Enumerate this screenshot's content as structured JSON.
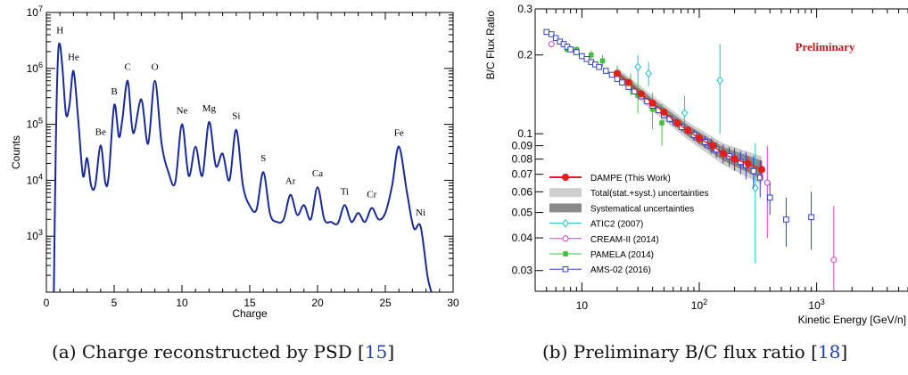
{
  "figures": [
    {
      "caption_prefix": "(a) Charge reconstructed by PSD [",
      "caption_ref": "15",
      "caption_suffix": "]"
    },
    {
      "caption_prefix": "(b) Preliminary B/C flux ratio [",
      "caption_ref": "18",
      "caption_suffix": "]"
    }
  ],
  "chart_data": [
    {
      "type": "line",
      "xlabel": "Charge",
      "ylabel": "Counts",
      "xlim": [
        0,
        30
      ],
      "ylim": [
        100,
        10000000
      ],
      "y_scale": "log",
      "x_ticks": [
        "0",
        "5",
        "10",
        "15",
        "20",
        "25",
        "30"
      ],
      "y_ticks": [
        "10^3",
        "10^4",
        "10^5",
        "10^6",
        "10^7"
      ],
      "series_color": "#1a2a9a",
      "peaks": [
        {
          "label": "H",
          "x": 1,
          "y": 2700000
        },
        {
          "label": "He",
          "x": 2,
          "y": 900000
        },
        {
          "label": "Be",
          "x": 4,
          "y": 42000
        },
        {
          "label": "B",
          "x": 5,
          "y": 220000
        },
        {
          "label": "C",
          "x": 6,
          "y": 600000
        },
        {
          "label": "O",
          "x": 8,
          "y": 600000
        },
        {
          "label": "Ne",
          "x": 10,
          "y": 100000
        },
        {
          "label": "Mg",
          "x": 12,
          "y": 110000
        },
        {
          "label": "Si",
          "x": 14,
          "y": 80000
        },
        {
          "label": "S",
          "x": 16,
          "y": 14000
        },
        {
          "label": "Ar",
          "x": 18,
          "y": 5500
        },
        {
          "label": "Ca",
          "x": 20,
          "y": 7500
        },
        {
          "label": "Ti",
          "x": 22,
          "y": 3600
        },
        {
          "label": "Cr",
          "x": 24,
          "y": 3200
        },
        {
          "label": "Fe",
          "x": 26,
          "y": 40000
        },
        {
          "label": "Ni",
          "x": 27.6,
          "y": 1500
        }
      ],
      "curve": [
        [
          0.55,
          100
        ],
        [
          0.7,
          50000
        ],
        [
          0.85,
          1500000
        ],
        [
          1,
          2700000
        ],
        [
          1.2,
          900000
        ],
        [
          1.45,
          150000
        ],
        [
          1.7,
          220000
        ],
        [
          2,
          900000
        ],
        [
          2.35,
          120000
        ],
        [
          2.7,
          12000
        ],
        [
          3,
          25000
        ],
        [
          3.3,
          8000
        ],
        [
          3.6,
          8000
        ],
        [
          4,
          42000
        ],
        [
          4.35,
          9000
        ],
        [
          4.6,
          12000
        ],
        [
          5,
          220000
        ],
        [
          5.35,
          60000
        ],
        [
          5.6,
          120000
        ],
        [
          6,
          600000
        ],
        [
          6.4,
          70000
        ],
        [
          7,
          280000
        ],
        [
          7.5,
          45000
        ],
        [
          8,
          600000
        ],
        [
          8.5,
          45000
        ],
        [
          9,
          14000
        ],
        [
          9.5,
          9000
        ],
        [
          10,
          100000
        ],
        [
          10.5,
          12000
        ],
        [
          11,
          40000
        ],
        [
          11.5,
          12000
        ],
        [
          12,
          110000
        ],
        [
          12.5,
          18000
        ],
        [
          13,
          30000
        ],
        [
          13.5,
          10000
        ],
        [
          14,
          80000
        ],
        [
          14.5,
          8000
        ],
        [
          15,
          3500
        ],
        [
          15.5,
          3000
        ],
        [
          16,
          14000
        ],
        [
          16.5,
          2500
        ],
        [
          17,
          1800
        ],
        [
          17.5,
          2000
        ],
        [
          18,
          5500
        ],
        [
          18.5,
          2400
        ],
        [
          19,
          3600
        ],
        [
          19.5,
          2000
        ],
        [
          20,
          7500
        ],
        [
          20.5,
          2000
        ],
        [
          21,
          1800
        ],
        [
          21.5,
          1700
        ],
        [
          22,
          3600
        ],
        [
          22.5,
          1800
        ],
        [
          23,
          2600
        ],
        [
          23.5,
          1800
        ],
        [
          24,
          3200
        ],
        [
          24.5,
          2000
        ],
        [
          25,
          2600
        ],
        [
          25.5,
          8000
        ],
        [
          26,
          40000
        ],
        [
          26.6,
          6000
        ],
        [
          27.1,
          1400
        ],
        [
          27.6,
          1500
        ],
        [
          28.1,
          200
        ],
        [
          28.4,
          100
        ]
      ]
    },
    {
      "type": "scatter",
      "xlabel": "Kinetic Energy [GeV/n]",
      "ylabel": "B/C Flux Ratio",
      "annotation": "Preliminary",
      "x_scale": "log",
      "y_scale": "log",
      "xlim": [
        4,
        6000
      ],
      "ylim": [
        0.025,
        0.3
      ],
      "x_ticks": [
        "10",
        "10^2",
        "10^3"
      ],
      "y_ticks": [
        "0.03",
        "0.04",
        "0.05",
        "0.06",
        "0.07",
        "0.08",
        "0.09",
        "0.1",
        "0.2",
        "0.3"
      ],
      "legend_placement": "bottom-left",
      "legend": [
        {
          "label": "DAMPE (This Work)",
          "color": "#e0201a",
          "marker": "filled-circle"
        },
        {
          "label": "Total(stat.+syst.) uncertainties",
          "color": "#cfcfcf",
          "marker": "band"
        },
        {
          "label": "Systematical uncertainties",
          "color": "#8a8a8a",
          "marker": "band"
        },
        {
          "label": "ATIC2 (2007)",
          "color": "#1fbfd0",
          "marker": "open-diamond"
        },
        {
          "label": "CREAM-II (2014)",
          "color": "#d040d0",
          "marker": "open-circle"
        },
        {
          "label": "PAMELA (2014)",
          "color": "#40c040",
          "marker": "filled-square"
        },
        {
          "label": "AMS-02 (2016)",
          "color": "#3040c0",
          "marker": "open-square"
        }
      ],
      "series": [
        {
          "name": "DAMPE (This Work)",
          "points": [
            [
              20,
              0.17
            ],
            [
              25,
              0.157
            ],
            [
              32,
              0.142
            ],
            [
              40,
              0.131
            ],
            [
              50,
              0.121
            ],
            [
              65,
              0.11
            ],
            [
              80,
              0.103
            ],
            [
              100,
              0.096
            ],
            [
              130,
              0.09
            ],
            [
              160,
              0.084
            ],
            [
              200,
              0.08
            ],
            [
              260,
              0.077
            ],
            [
              340,
              0.073
            ]
          ],
          "errors": [
            0.004,
            0.004,
            0.004,
            0.004,
            0.004,
            0.004,
            0.004,
            0.004,
            0.005,
            0.005,
            0.005,
            0.005,
            0.006
          ]
        },
        {
          "name": "ATIC2 (2007)",
          "points": [
            [
              30,
              0.18
            ],
            [
              37,
              0.17
            ],
            [
              75,
              0.12
            ],
            [
              150,
              0.16
            ],
            [
              300,
              0.062
            ]
          ],
          "errors": [
            0.02,
            0.018,
            0.02,
            0.06,
            0.03
          ]
        },
        {
          "name": "CREAM-II (2014)",
          "points": [
            [
              5.5,
              0.22
            ],
            [
              380,
              0.065
            ],
            [
              1400,
              0.033
            ]
          ],
          "errors": [
            0.005,
            0.025,
            0.02
          ]
        },
        {
          "name": "PAMELA (2014)",
          "points": [
            [
              7.5,
              0.21
            ],
            [
              9,
              0.21
            ],
            [
              12,
              0.2
            ],
            [
              15,
              0.19
            ],
            [
              20,
              0.17
            ],
            [
              26,
              0.155
            ],
            [
              30,
              0.14
            ],
            [
              40,
              0.124
            ],
            [
              48,
              0.11
            ]
          ],
          "errors": [
            0.005,
            0.005,
            0.008,
            0.01,
            0.012,
            0.015,
            0.02,
            0.02,
            0.02
          ]
        },
        {
          "name": "AMS-02 (2016)",
          "points": [
            [
              5,
              0.245
            ],
            [
              5.5,
              0.24
            ],
            [
              6,
              0.232
            ],
            [
              6.5,
              0.225
            ],
            [
              7,
              0.22
            ],
            [
              7.5,
              0.215
            ],
            [
              8,
              0.21
            ],
            [
              9,
              0.205
            ],
            [
              10,
              0.198
            ],
            [
              11,
              0.193
            ],
            [
              12,
              0.188
            ],
            [
              13,
              0.184
            ],
            [
              14,
              0.18
            ],
            [
              16,
              0.174
            ],
            [
              18,
              0.168
            ],
            [
              20,
              0.162
            ],
            [
              22,
              0.157
            ],
            [
              25,
              0.151
            ],
            [
              28,
              0.145
            ],
            [
              32,
              0.139
            ],
            [
              36,
              0.133
            ],
            [
              40,
              0.128
            ],
            [
              45,
              0.123
            ],
            [
              50,
              0.118
            ],
            [
              56,
              0.114
            ],
            [
              63,
              0.11
            ],
            [
              71,
              0.106
            ],
            [
              80,
              0.103
            ],
            [
              90,
              0.099
            ],
            [
              100,
              0.096
            ],
            [
              112,
              0.093
            ],
            [
              126,
              0.09
            ],
            [
              140,
              0.087
            ],
            [
              160,
              0.084
            ],
            [
              180,
              0.082
            ],
            [
              200,
              0.08
            ],
            [
              225,
              0.078
            ],
            [
              250,
              0.076
            ],
            [
              290,
              0.072
            ],
            [
              330,
              0.068
            ],
            [
              400,
              0.057
            ],
            [
              550,
              0.047
            ],
            [
              900,
              0.048
            ]
          ],
          "errors": [
            0.002,
            0.002,
            0.002,
            0.002,
            0.002,
            0.002,
            0.002,
            0.002,
            0.002,
            0.002,
            0.002,
            0.002,
            0.002,
            0.002,
            0.002,
            0.002,
            0.002,
            0.003,
            0.003,
            0.003,
            0.003,
            0.003,
            0.003,
            0.003,
            0.004,
            0.004,
            0.004,
            0.004,
            0.005,
            0.005,
            0.005,
            0.006,
            0.006,
            0.007,
            0.007,
            0.008,
            0.008,
            0.009,
            0.01,
            0.011,
            0.008,
            0.01,
            0.012
          ]
        },
        {
          "name": "Total(stat.+syst.) uncertainties",
          "points": [
            [
              20,
              0.17
            ],
            [
              40,
              0.131
            ],
            [
              80,
              0.103
            ],
            [
              160,
              0.084
            ],
            [
              340,
              0.073
            ]
          ],
          "errors": [
            0.009,
            0.009,
            0.008,
            0.008,
            0.009
          ]
        },
        {
          "name": "Systematical uncertainties",
          "points": [
            [
              20,
              0.17
            ],
            [
              40,
              0.131
            ],
            [
              80,
              0.103
            ],
            [
              160,
              0.084
            ],
            [
              340,
              0.073
            ]
          ],
          "errors": [
            0.005,
            0.005,
            0.005,
            0.005,
            0.006
          ]
        }
      ]
    }
  ]
}
